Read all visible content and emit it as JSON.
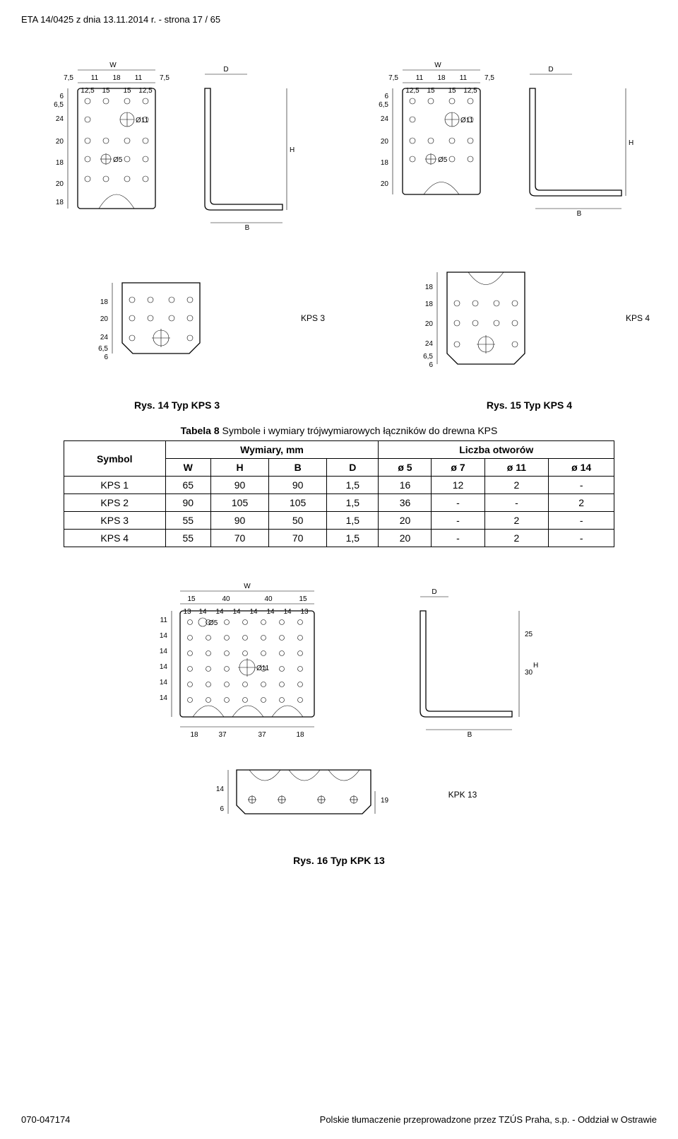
{
  "header": "ETA 14/0425 z dnia 13.11.2014 r. - strona 17 / 65",
  "fig14": "Rys. 14 Typ KPS 3",
  "fig15": "Rys. 15 Typ KPS 4",
  "fig16": "Rys. 16 Typ KPK 13",
  "table_caption_bold": "Tabela 8",
  "table_caption_rest": " Symbole i wymiary trójwymiarowych łączników do drewna KPS",
  "table": {
    "group_left": "Wymiary, mm",
    "group_right": "Liczba otworów",
    "cols": [
      "Symbol",
      "W",
      "H",
      "B",
      "D",
      "ø 5",
      "ø 7",
      "ø 11",
      "ø 14"
    ],
    "rows": [
      [
        "KPS 1",
        "65",
        "90",
        "90",
        "1,5",
        "16",
        "12",
        "2",
        "-"
      ],
      [
        "KPS 2",
        "90",
        "105",
        "105",
        "1,5",
        "36",
        "-",
        "-",
        "2"
      ],
      [
        "KPS 3",
        "55",
        "90",
        "50",
        "1,5",
        "20",
        "-",
        "2",
        "-"
      ],
      [
        "KPS 4",
        "55",
        "70",
        "70",
        "1,5",
        "20",
        "-",
        "2",
        "-"
      ]
    ]
  },
  "footer_left": "070-047174",
  "footer_right": "Polskie tłumaczenie przeprowadzone przez TZÚS Praha, s.p. - Oddział w Ostrawie",
  "labels": {
    "kps3": "KPS 3",
    "kps4": "KPS 4",
    "kpk13": "KPK 13",
    "W": "W",
    "H": "H",
    "B": "B",
    "D": "D",
    "d5": "Ø5",
    "d11": "Ø11",
    "n7_5": "7,5",
    "n11": "11",
    "n18": "18",
    "n12_5": "12,5",
    "n15": "15",
    "n6": "6",
    "n6_5": "6,5",
    "n24": "24",
    "n20": "20",
    "n40": "40",
    "n13": "13",
    "n14": "14",
    "n25": "25",
    "n30": "30",
    "n37": "37",
    "n19": "19"
  }
}
